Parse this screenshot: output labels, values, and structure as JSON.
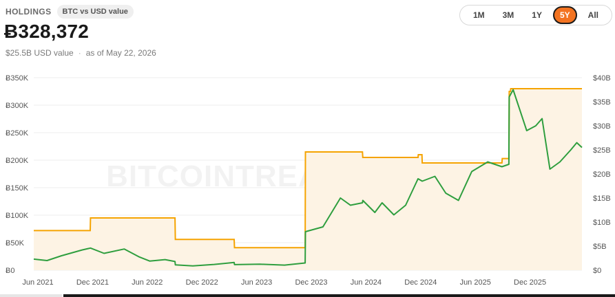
{
  "header": {
    "section_label": "HOLDINGS",
    "mode_pill": "BTC vs USD value",
    "btc_total": "Ƀ328,372",
    "usd_value": "$25.5B USD value",
    "as_of": "as of May 22, 2026"
  },
  "range_selector": {
    "options": [
      "1M",
      "3M",
      "1Y",
      "5Y",
      "All"
    ],
    "active": "5Y"
  },
  "watermark": "BITCOINTREASURIES.NET",
  "colors": {
    "holdings_line": "#f5a300",
    "holdings_fill": "#fdf3e4",
    "usd_line": "#2e9e3e",
    "active_accent": "#f37321"
  },
  "chart_data": {
    "type": "line",
    "x_tick_labels": [
      "Jun 2021",
      "Dec 2021",
      "Jun 2022",
      "Dec 2022",
      "Jun 2023",
      "Dec 2023",
      "Jun 2024",
      "Dec 2024",
      "Jun 2025",
      "Dec 2025"
    ],
    "y_left_tick_labels": [
      "Ƀ0",
      "Ƀ50K",
      "Ƀ100K",
      "Ƀ150K",
      "Ƀ200K",
      "Ƀ250K",
      "Ƀ300K",
      "Ƀ350K"
    ],
    "y_right_tick_labels": [
      "$0",
      "$5B",
      "$10B",
      "$15B",
      "$20B",
      "$25B",
      "$30B",
      "$35B",
      "$40B"
    ],
    "y_left_range": [
      0,
      350000
    ],
    "y_right_range": [
      0,
      40000000000
    ],
    "x_range": [
      "2021-06-01",
      "2026-05-22"
    ],
    "grid": true,
    "series": [
      {
        "axis": "left",
        "style": "step-area",
        "points": [
          [
            "2021-06-01",
            72000
          ],
          [
            "2021-12-05",
            72000
          ],
          [
            "2021-12-06",
            95000
          ],
          [
            "2022-09-12",
            95000
          ],
          [
            "2022-09-13",
            56000
          ],
          [
            "2023-03-27",
            56000
          ],
          [
            "2023-03-28",
            41000
          ],
          [
            "2023-11-17",
            41000
          ],
          [
            "2023-11-18",
            215000
          ],
          [
            "2024-05-25",
            215000
          ],
          [
            "2024-05-26",
            205000
          ],
          [
            "2024-11-25",
            205000
          ],
          [
            "2024-11-26",
            210000
          ],
          [
            "2024-12-08",
            210000
          ],
          [
            "2024-12-09",
            195000
          ],
          [
            "2025-08-30",
            195000
          ],
          [
            "2025-08-31",
            203000
          ],
          [
            "2025-09-22",
            203000
          ],
          [
            "2025-09-23",
            325000
          ],
          [
            "2025-09-27",
            325000
          ],
          [
            "2025-09-28",
            330000
          ],
          [
            "2026-05-22",
            330000
          ]
        ]
      },
      {
        "axis": "right",
        "style": "line",
        "points": [
          [
            "2021-06-01",
            2300000000.0
          ],
          [
            "2021-07-15",
            2000000000.0
          ],
          [
            "2021-09-01",
            3000000000.0
          ],
          [
            "2021-11-08",
            4200000000.0
          ],
          [
            "2021-12-06",
            4600000000.0
          ],
          [
            "2022-01-20",
            3500000000.0
          ],
          [
            "2022-03-28",
            4400000000.0
          ],
          [
            "2022-05-15",
            2800000000.0
          ],
          [
            "2022-06-20",
            1900000000.0
          ],
          [
            "2022-08-10",
            2200000000.0
          ],
          [
            "2022-09-12",
            1800000000.0
          ],
          [
            "2022-09-13",
            1100000000.0
          ],
          [
            "2022-11-10",
            900000000.0
          ],
          [
            "2023-01-20",
            1200000000.0
          ],
          [
            "2023-03-27",
            1600000000.0
          ],
          [
            "2023-03-28",
            1150000000.0
          ],
          [
            "2023-06-20",
            1250000000.0
          ],
          [
            "2023-09-10",
            1050000000.0
          ],
          [
            "2023-11-17",
            1500000000.0
          ],
          [
            "2023-11-18",
            8000000000.0
          ],
          [
            "2024-01-15",
            9000000000.0
          ],
          [
            "2024-03-13",
            15000000000.0
          ],
          [
            "2024-04-15",
            13500000000.0
          ],
          [
            "2024-05-25",
            14000000000.0
          ],
          [
            "2024-05-26",
            14500000000.0
          ],
          [
            "2024-07-05",
            12000000000.0
          ],
          [
            "2024-07-29",
            14000000000.0
          ],
          [
            "2024-09-06",
            11500000000.0
          ],
          [
            "2024-10-15",
            13500000000.0
          ],
          [
            "2024-11-25",
            19000000000.0
          ],
          [
            "2024-12-09",
            18500000000.0
          ],
          [
            "2025-01-20",
            19500000000.0
          ],
          [
            "2025-02-25",
            16000000000.0
          ],
          [
            "2025-04-08",
            14500000000.0
          ],
          [
            "2025-05-22",
            20500000000.0
          ],
          [
            "2025-07-14",
            22500000000.0
          ],
          [
            "2025-08-30",
            21500000000.0
          ],
          [
            "2025-09-22",
            22000000000.0
          ],
          [
            "2025-09-23",
            36000000000.0
          ],
          [
            "2025-10-06",
            37500000000.0
          ],
          [
            "2025-11-20",
            29000000000.0
          ],
          [
            "2025-12-20",
            30000000000.0
          ],
          [
            "2026-01-10",
            31500000000.0
          ],
          [
            "2026-02-05",
            21000000000.0
          ],
          [
            "2026-03-10",
            22500000000.0
          ],
          [
            "2026-04-15",
            25000000000.0
          ],
          [
            "2026-05-05",
            26500000000.0
          ],
          [
            "2026-05-22",
            25500000000.0
          ]
        ]
      }
    ]
  }
}
